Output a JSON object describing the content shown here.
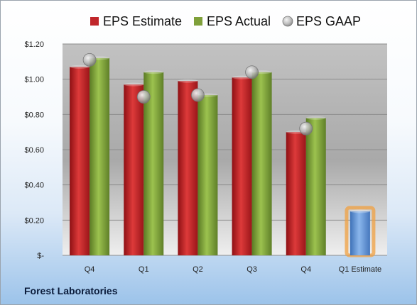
{
  "company": "Forest Laboratories",
  "chart_data": {
    "type": "bar",
    "categories": [
      "Q4",
      "Q1",
      "Q2",
      "Q3",
      "Q4",
      "Q1 Estimate"
    ],
    "series": [
      {
        "name": "EPS Estimate",
        "type": "bar",
        "color": "#c0262b",
        "values": [
          1.07,
          0.97,
          0.99,
          1.01,
          0.7,
          null
        ]
      },
      {
        "name": "EPS Actual",
        "type": "bar",
        "color": "#7fa03a",
        "values": [
          1.12,
          1.04,
          0.91,
          1.04,
          0.78,
          null
        ]
      },
      {
        "name": "EPS GAAP",
        "type": "marker",
        "color": "#a9a9a9",
        "values": [
          1.11,
          0.9,
          0.91,
          1.04,
          0.72,
          null
        ]
      },
      {
        "name": "",
        "type": "bar",
        "color": "#6b9bd8",
        "values": [
          null,
          null,
          null,
          null,
          null,
          0.25
        ]
      }
    ],
    "y_ticks": [
      "$-",
      "$0.20",
      "$0.40",
      "$0.60",
      "$0.80",
      "$1.00",
      "$1.20"
    ],
    "ylim": [
      0,
      1.2
    ],
    "grid": true,
    "legend_position": "top"
  }
}
